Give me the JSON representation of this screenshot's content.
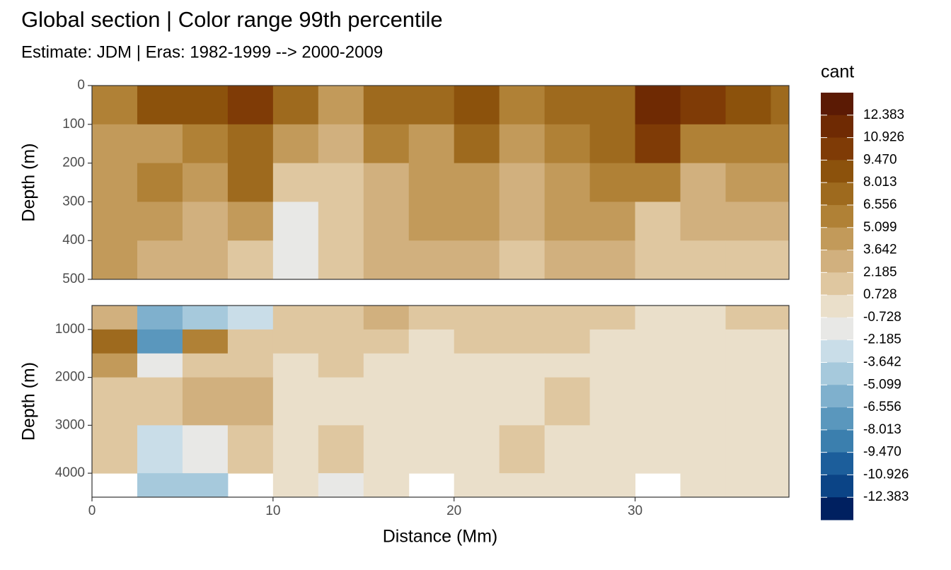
{
  "chart_data": {
    "type": "contour",
    "title": "Global section | Color range 99th percentile",
    "subtitle": "Estimate: JDM  | Eras: 1982-1999 --> 2000-2009",
    "x_label": "Distance (Mm)",
    "xlim": [
      0,
      38.5
    ],
    "xticks": [
      0,
      10,
      20,
      30
    ],
    "x_edges": [
      0,
      2.5,
      5,
      7.5,
      10,
      12.5,
      15,
      17.5,
      20,
      22.5,
      25,
      27.5,
      30,
      32.5,
      35,
      37.5,
      38.5
    ],
    "panels": [
      {
        "y_label": "Depth (m)",
        "ylim": [
          0,
          500
        ],
        "y_reversed": true,
        "yticks": [
          0,
          100,
          200,
          300,
          400,
          500
        ],
        "y_edges": [
          0,
          100,
          200,
          300,
          400,
          500
        ],
        "z": [
          [
            6,
            9,
            9,
            10,
            7,
            5,
            8,
            7,
            9,
            6,
            7,
            8,
            11,
            10,
            9,
            8
          ],
          [
            5,
            4,
            6,
            8,
            4,
            3,
            6,
            5,
            7,
            4,
            6,
            7,
            10,
            6,
            6,
            6
          ],
          [
            4,
            6,
            4,
            7,
            1,
            2,
            3,
            4,
            5,
            3,
            5,
            6,
            6,
            3,
            5,
            4
          ],
          [
            4,
            4,
            3,
            5,
            -1,
            1,
            3,
            4,
            4,
            3,
            4,
            5,
            2,
            3,
            3,
            3
          ],
          [
            4,
            3,
            3,
            1,
            -1,
            1,
            3,
            3,
            3,
            2,
            3,
            3,
            2,
            1,
            2,
            2
          ]
        ]
      },
      {
        "y_label": "Depth (m)",
        "ylim": [
          500,
          4500
        ],
        "y_reversed": true,
        "yticks": [
          1000,
          2000,
          3000,
          4000
        ],
        "y_edges": [
          500,
          1000,
          1500,
          2000,
          3000,
          4000,
          4500
        ],
        "z": [
          [
            3,
            -6,
            -4,
            -3,
            1,
            2,
            3,
            2,
            2,
            1,
            1,
            1,
            0,
            0,
            1,
            1
          ],
          [
            7,
            -8,
            6,
            1,
            1,
            1,
            1,
            0,
            1,
            1,
            1,
            0,
            0,
            0,
            0,
            0
          ],
          [
            5,
            -2,
            2,
            2,
            0,
            1,
            0,
            0,
            0,
            0,
            0,
            0,
            0,
            0,
            0,
            0
          ],
          [
            2,
            1,
            3,
            3,
            0,
            0,
            0,
            0,
            0,
            0,
            1,
            0,
            0,
            0,
            0,
            0
          ],
          [
            1,
            -3,
            -2,
            1,
            0,
            1,
            0,
            0,
            0,
            1,
            0,
            0,
            0,
            0,
            0,
            0
          ],
          [
            null,
            -4,
            -5,
            null,
            0,
            -1,
            0,
            null,
            0,
            0,
            0,
            0,
            null,
            0,
            0,
            0
          ]
        ]
      }
    ],
    "colorbar": {
      "title": "cant",
      "lim": [
        -13.84,
        13.84
      ],
      "ticks": [
        12.383,
        10.926,
        {
          "value": 9.47,
          "label": "9.470"
        },
        8.013,
        6.556,
        5.099,
        3.642,
        2.185,
        0.728,
        -0.728,
        -2.185,
        -3.642,
        -5.099,
        -6.556,
        -8.013,
        {
          "value": -9.47,
          "label": "-9.470"
        },
        -10.926,
        -12.383
      ],
      "colors_top_to_bottom": [
        "#5b1a04",
        "#6f2a03",
        "#7f3b06",
        "#8c520c",
        "#9e6a1e",
        "#b08136",
        "#c29a5a",
        "#d1b07e",
        "#dfc7a0",
        "#eadfca",
        "#e8e8e6",
        "#c9dde8",
        "#a6c9dc",
        "#7fb0cd",
        "#5a97bd",
        "#3b7fae",
        "#1c5e9b",
        "#0b4486",
        "#002060"
      ]
    }
  }
}
